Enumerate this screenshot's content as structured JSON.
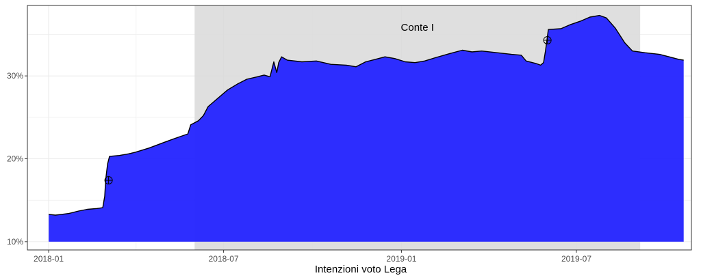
{
  "chart_data": {
    "type": "area",
    "title": "",
    "xlabel": "Intenzioni voto Lega",
    "ylabel": "",
    "x_ticks": [
      "2018-01",
      "2018-07",
      "2019-01",
      "2019-07"
    ],
    "y_ticks": [
      "10%",
      "20%",
      "30%"
    ],
    "xlim": [
      "2017-12-10",
      "2019-10-28"
    ],
    "ylim": [
      9.0,
      38.5
    ],
    "area_baseline": 10,
    "band": {
      "label": "Conte I",
      "start": "2018-06-01",
      "end": "2019-09-05"
    },
    "markers": [
      {
        "date": "2018-03-04",
        "value": 17.4
      },
      {
        "date": "2019-06-01",
        "value": 34.3
      }
    ],
    "series": [
      {
        "points": [
          [
            "2018-01-01",
            13.3
          ],
          [
            "2018-01-08",
            13.2
          ],
          [
            "2018-01-15",
            13.3
          ],
          [
            "2018-01-22",
            13.4
          ],
          [
            "2018-02-01",
            13.7
          ],
          [
            "2018-02-10",
            13.9
          ],
          [
            "2018-02-20",
            14.0
          ],
          [
            "2018-02-26",
            14.1
          ],
          [
            "2018-02-28",
            15.5
          ],
          [
            "2018-03-01",
            17.5
          ],
          [
            "2018-03-03",
            19.4
          ],
          [
            "2018-03-05",
            20.3
          ],
          [
            "2018-03-15",
            20.4
          ],
          [
            "2018-03-25",
            20.6
          ],
          [
            "2018-04-01",
            20.8
          ],
          [
            "2018-04-15",
            21.3
          ],
          [
            "2018-05-01",
            22.0
          ],
          [
            "2018-05-15",
            22.6
          ],
          [
            "2018-05-25",
            23.0
          ],
          [
            "2018-05-28",
            24.1
          ],
          [
            "2018-06-05",
            24.6
          ],
          [
            "2018-06-10",
            25.2
          ],
          [
            "2018-06-15",
            26.3
          ],
          [
            "2018-06-25",
            27.3
          ],
          [
            "2018-07-05",
            28.3
          ],
          [
            "2018-07-15",
            29.0
          ],
          [
            "2018-07-25",
            29.6
          ],
          [
            "2018-08-05",
            29.9
          ],
          [
            "2018-08-12",
            30.1
          ],
          [
            "2018-08-18",
            29.9
          ],
          [
            "2018-08-22",
            31.7
          ],
          [
            "2018-08-25",
            30.4
          ],
          [
            "2018-08-27",
            31.6
          ],
          [
            "2018-08-30",
            32.3
          ],
          [
            "2018-09-05",
            31.9
          ],
          [
            "2018-09-20",
            31.7
          ],
          [
            "2018-10-05",
            31.8
          ],
          [
            "2018-10-20",
            31.4
          ],
          [
            "2018-11-05",
            31.3
          ],
          [
            "2018-11-15",
            31.1
          ],
          [
            "2018-11-25",
            31.7
          ],
          [
            "2018-12-05",
            32.0
          ],
          [
            "2018-12-15",
            32.3
          ],
          [
            "2018-12-25",
            32.1
          ],
          [
            "2019-01-05",
            31.7
          ],
          [
            "2019-01-15",
            31.6
          ],
          [
            "2019-01-25",
            31.8
          ],
          [
            "2019-02-05",
            32.2
          ],
          [
            "2019-02-20",
            32.7
          ],
          [
            "2019-03-05",
            33.1
          ],
          [
            "2019-03-15",
            32.9
          ],
          [
            "2019-03-25",
            33.0
          ],
          [
            "2019-04-10",
            32.8
          ],
          [
            "2019-04-25",
            32.6
          ],
          [
            "2019-05-05",
            32.5
          ],
          [
            "2019-05-10",
            31.8
          ],
          [
            "2019-05-20",
            31.5
          ],
          [
            "2019-05-25",
            31.3
          ],
          [
            "2019-05-28",
            31.6
          ],
          [
            "2019-05-30",
            33.0
          ],
          [
            "2019-06-02",
            35.6
          ],
          [
            "2019-06-15",
            35.7
          ],
          [
            "2019-06-25",
            36.2
          ],
          [
            "2019-07-05",
            36.6
          ],
          [
            "2019-07-15",
            37.1
          ],
          [
            "2019-07-25",
            37.3
          ],
          [
            "2019-08-01",
            37.0
          ],
          [
            "2019-08-10",
            35.8
          ],
          [
            "2019-08-20",
            34.0
          ],
          [
            "2019-08-28",
            33.0
          ],
          [
            "2019-09-10",
            32.8
          ],
          [
            "2019-09-25",
            32.6
          ],
          [
            "2019-10-05",
            32.3
          ],
          [
            "2019-10-15",
            32.0
          ],
          [
            "2019-10-20",
            31.9
          ]
        ]
      }
    ]
  },
  "colors": {
    "area_fill": "#2323ff",
    "line": "#000000",
    "band": "#d9d9d9",
    "grid": "#ebebeb",
    "border": "#333333"
  }
}
